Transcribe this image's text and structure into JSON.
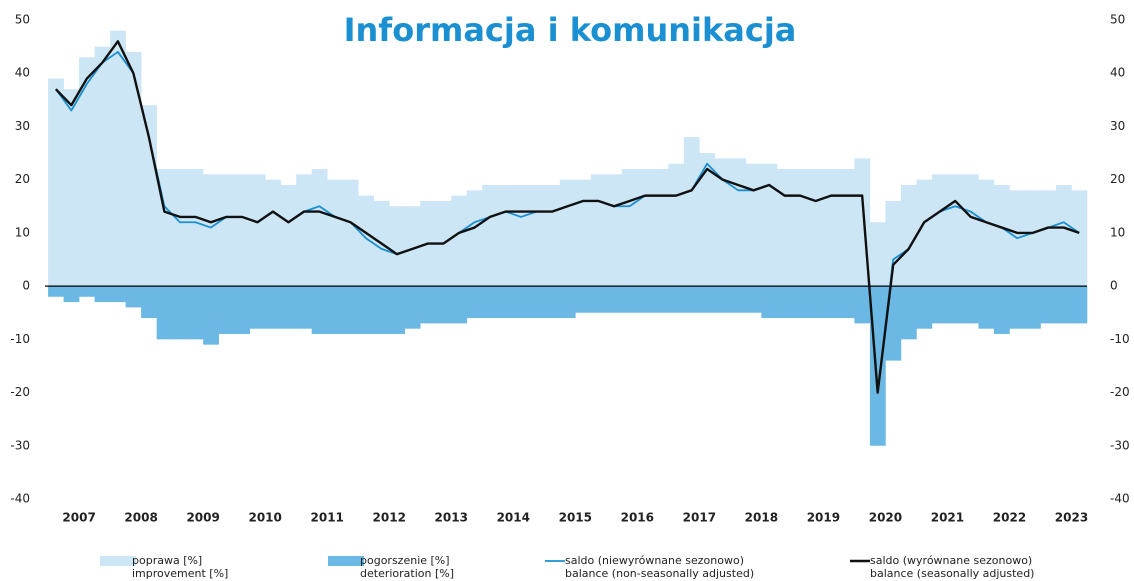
{
  "chart_data": {
    "type": "bar_line",
    "title": "Informacja i komunikacja",
    "x": [
      2007,
      2007.25,
      2007.5,
      2007.75,
      2008,
      2008.25,
      2008.5,
      2008.75,
      2009,
      2009.25,
      2009.5,
      2009.75,
      2010,
      2010.25,
      2010.5,
      2010.75,
      2011,
      2011.25,
      2011.5,
      2011.75,
      2012,
      2012.25,
      2012.5,
      2012.75,
      2013,
      2013.25,
      2013.5,
      2013.75,
      2014,
      2014.25,
      2014.5,
      2014.75,
      2015,
      2015.25,
      2015.5,
      2015.75,
      2016,
      2016.25,
      2016.5,
      2016.75,
      2017,
      2017.25,
      2017.5,
      2017.75,
      2018,
      2018.25,
      2018.5,
      2018.75,
      2019,
      2019.25,
      2019.5,
      2019.75,
      2020,
      2020.25,
      2020.5,
      2020.75,
      2021,
      2021.25,
      2021.5,
      2021.75,
      2022,
      2022.25,
      2022.5,
      2022.75,
      2023,
      2023.25,
      2023.5
    ],
    "series": [
      {
        "name": "poprawa [%]",
        "name_en": "improvement [%]",
        "kind": "bar",
        "color": "#cde6f5",
        "values": [
          39,
          37,
          43,
          45,
          48,
          44,
          34,
          22,
          22,
          22,
          21,
          21,
          21,
          21,
          20,
          19,
          21,
          22,
          20,
          20,
          17,
          16,
          15,
          15,
          16,
          16,
          17,
          18,
          19,
          19,
          19,
          19,
          19,
          20,
          20,
          21,
          21,
          22,
          22,
          22,
          23,
          28,
          25,
          24,
          24,
          23,
          23,
          22,
          22,
          22,
          22,
          22,
          24,
          12,
          16,
          19,
          20,
          21,
          21,
          21,
          20,
          19,
          18,
          18,
          18,
          19,
          18
        ]
      },
      {
        "name": "pogorszenie [%]",
        "name_en": "deterioration [%]",
        "kind": "bar",
        "color": "#6ab8e3",
        "values": [
          -2,
          -3,
          -2,
          -3,
          -3,
          -4,
          -6,
          -10,
          -10,
          -10,
          -11,
          -9,
          -9,
          -8,
          -8,
          -8,
          -8,
          -9,
          -9,
          -9,
          -9,
          -9,
          -9,
          -8,
          -7,
          -7,
          -7,
          -6,
          -6,
          -6,
          -6,
          -6,
          -6,
          -6,
          -5,
          -5,
          -5,
          -5,
          -5,
          -5,
          -5,
          -5,
          -5,
          -5,
          -5,
          -5,
          -6,
          -6,
          -6,
          -6,
          -6,
          -6,
          -7,
          -30,
          -14,
          -10,
          -8,
          -7,
          -7,
          -7,
          -8,
          -9,
          -8,
          -8,
          -7,
          -7,
          -7
        ]
      },
      {
        "name": "saldo (niewyrównane sezonowo)",
        "name_en": "balance (non-seasonally adjusted)",
        "kind": "line",
        "color": "#1a8fd1",
        "values": [
          37,
          33,
          38,
          42,
          44,
          40,
          28,
          15,
          12,
          12,
          11,
          13,
          13,
          12,
          14,
          12,
          14,
          15,
          13,
          12,
          9,
          7,
          6,
          7,
          8,
          8,
          10,
          12,
          13,
          14,
          13,
          14,
          14,
          15,
          16,
          16,
          15,
          15,
          17,
          17,
          17,
          18,
          23,
          20,
          18,
          18,
          19,
          17,
          17,
          16,
          17,
          17,
          17,
          -20,
          5,
          7,
          12,
          14,
          15,
          14,
          12,
          11,
          9,
          10,
          11,
          12,
          10
        ]
      },
      {
        "name": "saldo (wyrównane sezonowo)",
        "name_en": "balance (seasonally adjusted)",
        "kind": "line",
        "color": "#111111",
        "values": [
          37,
          34,
          39,
          42,
          46,
          40,
          28,
          14,
          13,
          13,
          12,
          13,
          13,
          12,
          14,
          12,
          14,
          14,
          13,
          12,
          10,
          8,
          6,
          7,
          8,
          8,
          10,
          11,
          13,
          14,
          14,
          14,
          14,
          15,
          16,
          16,
          15,
          16,
          17,
          17,
          17,
          18,
          22,
          20,
          19,
          18,
          19,
          17,
          17,
          16,
          17,
          17,
          17,
          -20,
          4,
          7,
          12,
          14,
          16,
          13,
          12,
          11,
          10,
          10,
          11,
          11,
          10
        ]
      }
    ],
    "xlim": [
      2006.95,
      2023.75
    ],
    "xticks": [
      {
        "value": 2007.5,
        "label": "2007"
      },
      {
        "value": 2008.5,
        "label": "2008"
      },
      {
        "value": 2009.5,
        "label": "2009"
      },
      {
        "value": 2010.5,
        "label": "2010"
      },
      {
        "value": 2011.5,
        "label": "2011"
      },
      {
        "value": 2012.5,
        "label": "2012"
      },
      {
        "value": 2013.5,
        "label": "2013"
      },
      {
        "value": 2014.5,
        "label": "2014"
      },
      {
        "value": 2015.5,
        "label": "2015"
      },
      {
        "value": 2016.5,
        "label": "2016"
      },
      {
        "value": 2017.5,
        "label": "2017"
      },
      {
        "value": 2018.5,
        "label": "2018"
      },
      {
        "value": 2019.5,
        "label": "2019"
      },
      {
        "value": 2020.5,
        "label": "2020"
      },
      {
        "value": 2021.5,
        "label": "2021"
      },
      {
        "value": 2022.5,
        "label": "2022"
      },
      {
        "value": 2023.5,
        "label": "2023"
      }
    ],
    "step": 0.25,
    "ylim": [
      -40,
      50
    ],
    "yticks": [
      50,
      40,
      30,
      20,
      10,
      0,
      -10,
      -20,
      -30,
      -40
    ],
    "y2lim": [
      -40,
      50
    ],
    "y2ticks": [
      50,
      40,
      30,
      20,
      10,
      0,
      -10,
      -20,
      -30,
      -40
    ]
  }
}
